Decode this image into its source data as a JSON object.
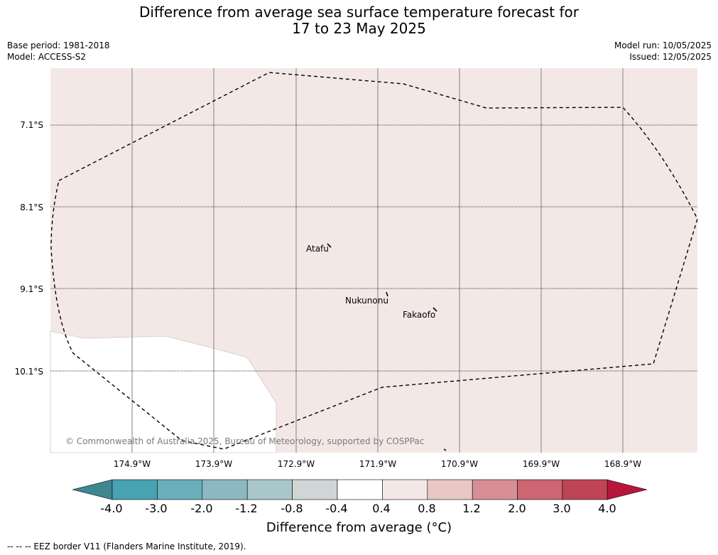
{
  "title_line1": "Difference from average sea surface temperature forecast for",
  "title_line2": "17 to 23 May 2025",
  "meta": {
    "base_period": "Base period: 1981-2018",
    "model": "Model: ACCESS-S2",
    "model_run": "Model run: 10/05/2025",
    "issued": "Issued: 12/05/2025"
  },
  "map": {
    "latitudes": [
      "7.1°S",
      "8.1°S",
      "9.1°S",
      "10.1°S"
    ],
    "longitudes": [
      "174.9°W",
      "173.9°W",
      "172.9°W",
      "171.9°W",
      "170.9°W",
      "169.9°W",
      "168.9°W"
    ],
    "places": [
      "Atafu",
      "Nukunonu",
      "Fakaofo"
    ],
    "copyright": "© Commonwealth of Australia 2025, Bureau of Meteorology, supported by COSPPac",
    "anomaly_fill_color": "#f4e8e7",
    "no_anomaly_color": "#ffffff",
    "border_style": "dashed black"
  },
  "colorbar": {
    "labels": [
      "-4.0",
      "-3.0",
      "-2.0",
      "-1.2",
      "-0.8",
      "-0.4",
      "0.4",
      "0.8",
      "1.2",
      "2.0",
      "3.0",
      "4.0"
    ],
    "under_color": "#3f8690",
    "colors": [
      "#47a2b2",
      "#69aebb",
      "#8cb8c2",
      "#a9c7cb",
      "#d0d6d6",
      "#ffffff",
      "#f4e8e7",
      "#e8c7c4",
      "#d88e96",
      "#cc6672",
      "#bf4556"
    ],
    "over_color": "#b5163a",
    "title": "Difference from average (°C)"
  },
  "footer": "--  --  -- EEZ border V11 (Flanders Marine Institute, 2019)."
}
